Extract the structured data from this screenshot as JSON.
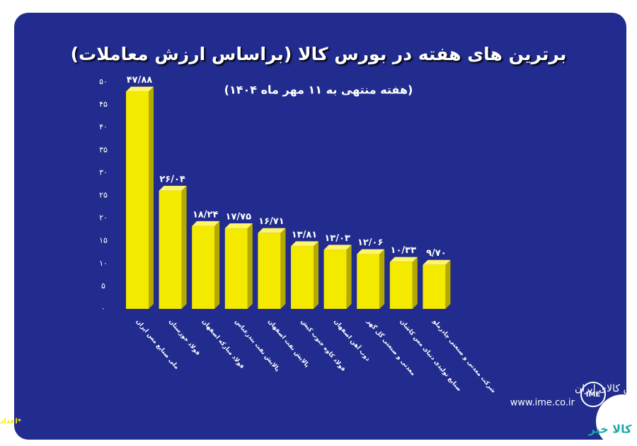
{
  "chart_data": {
    "type": "bar3d",
    "title": "برترین های هفته در بورس کالا (براساس ارزش معاملات)",
    "subtitle": "(هفته منتهی به ۱۱ مهر ماه ۱۴۰۴)",
    "footnote": "*اعداد برحسب هزار میلیارد ریال است",
    "categories": [
      "ملی صنایع مس ایران",
      "فولاد خوزستان",
      "فولاد مبارکه اصفهان",
      "پالایش نفت بندرعباس",
      "پالایش نفت اصفهان",
      "فولاد کاوه جنوب کیش",
      "ذوب آهن اصفهان",
      "معدنی و صنعتی گل گهر",
      "صنایع تولیدی دنیای مس کاشان",
      "شرکت معدنی و صنعتی چادرملو"
    ],
    "values": [
      47.88,
      26.04,
      18.24,
      17.75,
      16.71,
      13.81,
      13.03,
      12.06,
      10.33,
      9.7
    ],
    "value_labels": [
      "۴۷/۸۸",
      "۲۶/۰۴",
      "۱۸/۲۴",
      "۱۷/۷۵",
      "۱۶/۷۱",
      "۱۳/۸۱",
      "۱۳/۰۳",
      "۱۲/۰۶",
      "۱۰/۳۳",
      "۹/۷۰"
    ],
    "color": "#f4ea00",
    "ylim": [
      0,
      50
    ],
    "yticks": [
      {
        "value": 0,
        "label": "۰"
      },
      {
        "value": 5,
        "label": "۵"
      },
      {
        "value": 10,
        "label": "۱۰"
      },
      {
        "value": 15,
        "label": "۱۵"
      },
      {
        "value": 20,
        "label": "۲۰"
      },
      {
        "value": 25,
        "label": "۲۵"
      },
      {
        "value": 30,
        "label": "۳۰"
      },
      {
        "value": 35,
        "label": "۳۵"
      },
      {
        "value": 40,
        "label": "۴۰"
      },
      {
        "value": 45,
        "label": "۴۵"
      },
      {
        "value": 50,
        "label": "۵۰"
      }
    ],
    "grid": false
  },
  "logo": {
    "name": "بورس کالای ایران",
    "url": "www.ime.co.ir",
    "mark": "IME",
    "watermark": "کالا خبر"
  }
}
